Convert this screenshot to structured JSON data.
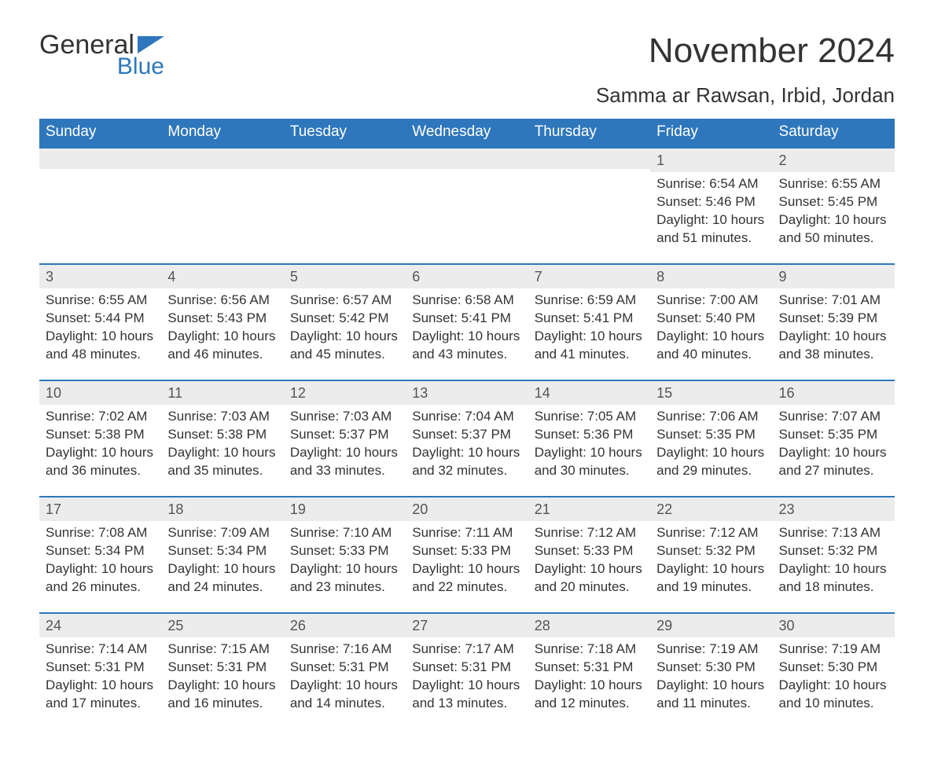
{
  "colors": {
    "header_bg": "#2f77bc",
    "header_text": "#ffffff",
    "row_divider": "#2f77bc",
    "daynum_bg": "#ececec",
    "body_text": "#333333",
    "logo_blue": "#2f77bc",
    "page_bg": "#ffffff"
  },
  "typography": {
    "month_title_fontsize": 44,
    "location_fontsize": 26,
    "header_fontsize": 19,
    "cell_fontsize": 17,
    "daynum_fontsize": 18,
    "logo_general_fontsize": 34,
    "logo_blue_fontsize": 30
  },
  "logo": {
    "line1": "General",
    "line2": "Blue"
  },
  "title": "November 2024",
  "location": "Samma ar Rawsan, Irbid, Jordan",
  "weekday_headers": [
    "Sunday",
    "Monday",
    "Tuesday",
    "Wednesday",
    "Thursday",
    "Friday",
    "Saturday"
  ],
  "calendar": {
    "type": "table",
    "columns": 7,
    "rows": 5,
    "leading_blank_cells": 5,
    "days": [
      {
        "n": "1",
        "sunrise": "Sunrise: 6:54 AM",
        "sunset": "Sunset: 5:46 PM",
        "daylight": "Daylight: 10 hours and 51 minutes."
      },
      {
        "n": "2",
        "sunrise": "Sunrise: 6:55 AM",
        "sunset": "Sunset: 5:45 PM",
        "daylight": "Daylight: 10 hours and 50 minutes."
      },
      {
        "n": "3",
        "sunrise": "Sunrise: 6:55 AM",
        "sunset": "Sunset: 5:44 PM",
        "daylight": "Daylight: 10 hours and 48 minutes."
      },
      {
        "n": "4",
        "sunrise": "Sunrise: 6:56 AM",
        "sunset": "Sunset: 5:43 PM",
        "daylight": "Daylight: 10 hours and 46 minutes."
      },
      {
        "n": "5",
        "sunrise": "Sunrise: 6:57 AM",
        "sunset": "Sunset: 5:42 PM",
        "daylight": "Daylight: 10 hours and 45 minutes."
      },
      {
        "n": "6",
        "sunrise": "Sunrise: 6:58 AM",
        "sunset": "Sunset: 5:41 PM",
        "daylight": "Daylight: 10 hours and 43 minutes."
      },
      {
        "n": "7",
        "sunrise": "Sunrise: 6:59 AM",
        "sunset": "Sunset: 5:41 PM",
        "daylight": "Daylight: 10 hours and 41 minutes."
      },
      {
        "n": "8",
        "sunrise": "Sunrise: 7:00 AM",
        "sunset": "Sunset: 5:40 PM",
        "daylight": "Daylight: 10 hours and 40 minutes."
      },
      {
        "n": "9",
        "sunrise": "Sunrise: 7:01 AM",
        "sunset": "Sunset: 5:39 PM",
        "daylight": "Daylight: 10 hours and 38 minutes."
      },
      {
        "n": "10",
        "sunrise": "Sunrise: 7:02 AM",
        "sunset": "Sunset: 5:38 PM",
        "daylight": "Daylight: 10 hours and 36 minutes."
      },
      {
        "n": "11",
        "sunrise": "Sunrise: 7:03 AM",
        "sunset": "Sunset: 5:38 PM",
        "daylight": "Daylight: 10 hours and 35 minutes."
      },
      {
        "n": "12",
        "sunrise": "Sunrise: 7:03 AM",
        "sunset": "Sunset: 5:37 PM",
        "daylight": "Daylight: 10 hours and 33 minutes."
      },
      {
        "n": "13",
        "sunrise": "Sunrise: 7:04 AM",
        "sunset": "Sunset: 5:37 PM",
        "daylight": "Daylight: 10 hours and 32 minutes."
      },
      {
        "n": "14",
        "sunrise": "Sunrise: 7:05 AM",
        "sunset": "Sunset: 5:36 PM",
        "daylight": "Daylight: 10 hours and 30 minutes."
      },
      {
        "n": "15",
        "sunrise": "Sunrise: 7:06 AM",
        "sunset": "Sunset: 5:35 PM",
        "daylight": "Daylight: 10 hours and 29 minutes."
      },
      {
        "n": "16",
        "sunrise": "Sunrise: 7:07 AM",
        "sunset": "Sunset: 5:35 PM",
        "daylight": "Daylight: 10 hours and 27 minutes."
      },
      {
        "n": "17",
        "sunrise": "Sunrise: 7:08 AM",
        "sunset": "Sunset: 5:34 PM",
        "daylight": "Daylight: 10 hours and 26 minutes."
      },
      {
        "n": "18",
        "sunrise": "Sunrise: 7:09 AM",
        "sunset": "Sunset: 5:34 PM",
        "daylight": "Daylight: 10 hours and 24 minutes."
      },
      {
        "n": "19",
        "sunrise": "Sunrise: 7:10 AM",
        "sunset": "Sunset: 5:33 PM",
        "daylight": "Daylight: 10 hours and 23 minutes."
      },
      {
        "n": "20",
        "sunrise": "Sunrise: 7:11 AM",
        "sunset": "Sunset: 5:33 PM",
        "daylight": "Daylight: 10 hours and 22 minutes."
      },
      {
        "n": "21",
        "sunrise": "Sunrise: 7:12 AM",
        "sunset": "Sunset: 5:33 PM",
        "daylight": "Daylight: 10 hours and 20 minutes."
      },
      {
        "n": "22",
        "sunrise": "Sunrise: 7:12 AM",
        "sunset": "Sunset: 5:32 PM",
        "daylight": "Daylight: 10 hours and 19 minutes."
      },
      {
        "n": "23",
        "sunrise": "Sunrise: 7:13 AM",
        "sunset": "Sunset: 5:32 PM",
        "daylight": "Daylight: 10 hours and 18 minutes."
      },
      {
        "n": "24",
        "sunrise": "Sunrise: 7:14 AM",
        "sunset": "Sunset: 5:31 PM",
        "daylight": "Daylight: 10 hours and 17 minutes."
      },
      {
        "n": "25",
        "sunrise": "Sunrise: 7:15 AM",
        "sunset": "Sunset: 5:31 PM",
        "daylight": "Daylight: 10 hours and 16 minutes."
      },
      {
        "n": "26",
        "sunrise": "Sunrise: 7:16 AM",
        "sunset": "Sunset: 5:31 PM",
        "daylight": "Daylight: 10 hours and 14 minutes."
      },
      {
        "n": "27",
        "sunrise": "Sunrise: 7:17 AM",
        "sunset": "Sunset: 5:31 PM",
        "daylight": "Daylight: 10 hours and 13 minutes."
      },
      {
        "n": "28",
        "sunrise": "Sunrise: 7:18 AM",
        "sunset": "Sunset: 5:31 PM",
        "daylight": "Daylight: 10 hours and 12 minutes."
      },
      {
        "n": "29",
        "sunrise": "Sunrise: 7:19 AM",
        "sunset": "Sunset: 5:30 PM",
        "daylight": "Daylight: 10 hours and 11 minutes."
      },
      {
        "n": "30",
        "sunrise": "Sunrise: 7:19 AM",
        "sunset": "Sunset: 5:30 PM",
        "daylight": "Daylight: 10 hours and 10 minutes."
      }
    ]
  }
}
